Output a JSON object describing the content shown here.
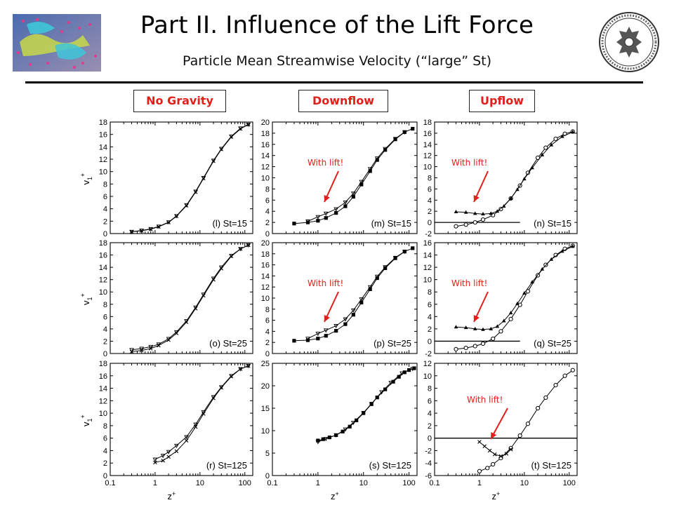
{
  "header": {
    "title": "Part II. Influence of the Lift Force",
    "subtitle": "Particle Mean Streamwise Velocity (“large” St)"
  },
  "column_labels": [
    "No Gravity",
    "Downflow",
    "Upflow"
  ],
  "colors": {
    "accent": "#e0201b",
    "text": "#000000",
    "rule": "#000000"
  },
  "icons": {
    "thumbnail": "particle-flow-visualization",
    "seal": "university-seal"
  },
  "annotation_text": "With lift!",
  "axis": {
    "ylabel_base": "v",
    "ylabel_sub": "1",
    "ylabel_sup": "+",
    "xlabel": "z",
    "xlabel_sup": "+",
    "xticks": [
      "0.1",
      "1",
      "10",
      "100"
    ]
  },
  "chart_data": [
    {
      "type": "line",
      "label": "(l) St=15",
      "x_scale": "log",
      "xlim": [
        0.1,
        150
      ],
      "ylim": [
        0,
        18
      ],
      "yticks": [
        0,
        2,
        4,
        6,
        8,
        10,
        12,
        14,
        16,
        18
      ],
      "zero_line": false,
      "annotated": false,
      "series": [
        {
          "marker": "x",
          "x": [
            0.3,
            0.5,
            0.8,
            1.2,
            2,
            3,
            5,
            8,
            12,
            20,
            30,
            50,
            80,
            120
          ],
          "y": [
            0.3,
            0.45,
            0.7,
            1.1,
            1.8,
            2.8,
            4.5,
            6.7,
            8.9,
            11.7,
            13.6,
            15.6,
            16.9,
            17.6
          ]
        },
        {
          "marker": "v",
          "x": [
            0.3,
            0.5,
            0.8,
            1.2,
            2,
            3,
            5,
            8,
            12,
            20,
            30,
            50,
            80,
            120
          ],
          "y": [
            0.3,
            0.5,
            0.75,
            1.15,
            1.85,
            2.85,
            4.6,
            6.8,
            9.0,
            11.8,
            13.7,
            15.7,
            17.0,
            17.6
          ]
        }
      ]
    },
    {
      "type": "line",
      "label": "(m) St=15",
      "x_scale": "log",
      "xlim": [
        0.1,
        150
      ],
      "ylim": [
        0,
        20
      ],
      "yticks": [
        0,
        2,
        4,
        6,
        8,
        10,
        12,
        14,
        16,
        18,
        20
      ],
      "zero_line": false,
      "annotated": true,
      "series": [
        {
          "marker": "square",
          "x": [
            0.3,
            0.6,
            1,
            1.5,
            2.5,
            4,
            6,
            9,
            14,
            20,
            30,
            50,
            80,
            120
          ],
          "y": [
            1.8,
            2.0,
            2.3,
            2.8,
            3.7,
            4.9,
            6.6,
            8.8,
            11.2,
            13.2,
            15.0,
            16.9,
            18.2,
            18.8
          ]
        },
        {
          "marker": "v",
          "x": [
            0.6,
            1,
            1.5,
            2.5,
            4,
            6,
            9,
            14,
            20,
            30,
            50,
            80
          ],
          "y": [
            2.2,
            3.0,
            3.6,
            4.4,
            5.6,
            7.2,
            9.3,
            11.6,
            13.5,
            15.2,
            17.0,
            18.2
          ]
        }
      ]
    },
    {
      "type": "line",
      "label": "(n) St=15",
      "x_scale": "log",
      "xlim": [
        0.1,
        150
      ],
      "ylim": [
        -2,
        18
      ],
      "yticks": [
        -2,
        0,
        2,
        4,
        6,
        8,
        10,
        12,
        14,
        16,
        18
      ],
      "zero_line": true,
      "annotated": true,
      "series": [
        {
          "marker": "circle",
          "x": [
            0.3,
            0.5,
            0.8,
            1.2,
            2,
            3,
            5,
            8,
            12,
            20,
            30,
            50,
            80,
            120
          ],
          "y": [
            -0.7,
            -0.4,
            0.0,
            0.5,
            1.3,
            2.4,
            4.3,
            6.6,
            8.9,
            11.6,
            13.4,
            15.0,
            15.9,
            16.3
          ]
        },
        {
          "marker": "triangle",
          "x": [
            0.3,
            0.5,
            0.8,
            1.2,
            1.8,
            2.5,
            3.5,
            5,
            7,
            10,
            15,
            25,
            40,
            70,
            120
          ],
          "y": [
            1.9,
            1.8,
            1.6,
            1.5,
            1.6,
            2.0,
            2.9,
            4.3,
            5.9,
            7.8,
            9.8,
            12.1,
            13.9,
            15.4,
            16.2
          ]
        }
      ]
    },
    {
      "type": "line",
      "label": "(o) St=25",
      "x_scale": "log",
      "xlim": [
        0.1,
        150
      ],
      "ylim": [
        0,
        18
      ],
      "yticks": [
        0,
        2,
        4,
        6,
        8,
        10,
        12,
        14,
        16,
        18
      ],
      "zero_line": false,
      "annotated": false,
      "series": [
        {
          "marker": "x",
          "x": [
            0.3,
            0.5,
            0.8,
            1.2,
            2,
            3,
            5,
            8,
            12,
            20,
            30,
            50,
            80,
            120
          ],
          "y": [
            0.3,
            0.5,
            0.8,
            1.3,
            2.2,
            3.3,
            5.1,
            7.3,
            9.4,
            12.0,
            13.8,
            15.8,
            17.0,
            17.6
          ]
        },
        {
          "marker": "v",
          "x": [
            0.3,
            0.5,
            0.8,
            1.2,
            2,
            3,
            5,
            8,
            12,
            20,
            30,
            50,
            80,
            120
          ],
          "y": [
            0.6,
            0.8,
            1.1,
            1.5,
            2.4,
            3.5,
            5.3,
            7.5,
            9.6,
            12.2,
            14.0,
            15.9,
            17.0,
            17.6
          ]
        }
      ]
    },
    {
      "type": "line",
      "label": "(p) St=25",
      "x_scale": "log",
      "xlim": [
        0.1,
        150
      ],
      "ylim": [
        0,
        20
      ],
      "yticks": [
        0,
        2,
        4,
        6,
        8,
        10,
        12,
        14,
        16,
        18,
        20
      ],
      "zero_line": false,
      "annotated": true,
      "series": [
        {
          "marker": "square",
          "x": [
            0.3,
            0.6,
            1,
            1.5,
            2.5,
            4,
            6,
            9,
            14,
            20,
            30,
            50,
            80,
            120
          ],
          "y": [
            2.3,
            2.4,
            2.7,
            3.2,
            4.1,
            5.3,
            7.0,
            9.2,
            11.6,
            13.6,
            15.4,
            17.2,
            18.4,
            19.0
          ]
        },
        {
          "marker": "v",
          "x": [
            0.6,
            1,
            1.5,
            2.5,
            4,
            6,
            9,
            14,
            20,
            30,
            50,
            80
          ],
          "y": [
            2.7,
            3.6,
            4.2,
            5.0,
            6.2,
            7.8,
            9.8,
            12.0,
            13.9,
            15.6,
            17.3,
            18.4
          ]
        }
      ]
    },
    {
      "type": "line",
      "label": "(q) St=25",
      "x_scale": "log",
      "xlim": [
        0.1,
        150
      ],
      "ylim": [
        -2,
        16
      ],
      "yticks": [
        -2,
        0,
        2,
        4,
        6,
        8,
        10,
        12,
        14,
        16
      ],
      "zero_line": true,
      "annotated": true,
      "series": [
        {
          "marker": "circle",
          "x": [
            0.3,
            0.5,
            0.8,
            1.2,
            2,
            3,
            5,
            8,
            12,
            20,
            30,
            50,
            80,
            120
          ],
          "y": [
            -1.3,
            -1.1,
            -0.8,
            -0.4,
            0.4,
            1.6,
            3.6,
            5.9,
            8.1,
            10.7,
            12.4,
            14.0,
            15.0,
            15.5
          ]
        },
        {
          "marker": "triangle",
          "x": [
            0.3,
            0.5,
            0.8,
            1.2,
            1.8,
            2.5,
            3.5,
            5,
            7,
            10,
            15,
            25,
            40,
            70,
            120
          ],
          "y": [
            2.3,
            2.2,
            2.0,
            1.9,
            2.0,
            2.4,
            3.3,
            4.6,
            6.1,
            7.8,
            9.6,
            11.7,
            13.3,
            14.6,
            15.4
          ]
        }
      ]
    },
    {
      "type": "line",
      "label": "(r) St=125",
      "x_scale": "log",
      "xlim": [
        0.1,
        150
      ],
      "ylim": [
        0,
        18
      ],
      "yticks": [
        0,
        2,
        4,
        6,
        8,
        10,
        12,
        14,
        16,
        18
      ],
      "zero_line": false,
      "annotated": false,
      "series": [
        {
          "marker": "x",
          "x": [
            1,
            1.5,
            2,
            3,
            5,
            8,
            12,
            20,
            30,
            50,
            80,
            120
          ],
          "y": [
            2.1,
            2.4,
            3.0,
            3.9,
            5.6,
            7.8,
            9.9,
            12.4,
            14.1,
            15.9,
            17.1,
            17.6
          ]
        },
        {
          "marker": "v",
          "x": [
            1,
            1.5,
            2,
            3,
            5,
            8,
            12,
            20,
            30,
            50,
            80,
            120
          ],
          "y": [
            2.6,
            3.2,
            3.8,
            4.8,
            6.2,
            8.2,
            10.2,
            12.6,
            14.2,
            16.0,
            17.1,
            17.6
          ]
        }
      ]
    },
    {
      "type": "line",
      "label": "(s) St=125",
      "x_scale": "log",
      "xlim": [
        0.1,
        150
      ],
      "ylim": [
        0,
        25
      ],
      "yticks": [
        0,
        5,
        10,
        15,
        20,
        25
      ],
      "zero_line": false,
      "annotated": false,
      "series": [
        {
          "marker": "square",
          "x": [
            1,
            1.3,
            1.8,
            2.5,
            3.5,
            5,
            7,
            10,
            15,
            20,
            30,
            45,
            60,
            80,
            100,
            130
          ],
          "y": [
            7.8,
            8.1,
            8.5,
            9.0,
            9.8,
            10.9,
            12.3,
            13.9,
            15.9,
            17.4,
            19.2,
            20.9,
            22.0,
            23.0,
            23.5,
            23.9
          ]
        },
        {
          "marker": "v",
          "x": [
            1,
            1.5,
            2.5,
            4,
            6,
            10,
            15,
            25,
            40,
            70,
            120
          ],
          "y": [
            7.5,
            8.2,
            9.0,
            10.3,
            11.8,
            14.0,
            16.0,
            18.6,
            20.7,
            22.8,
            23.8
          ]
        }
      ]
    },
    {
      "type": "line",
      "label": "(t) St=125",
      "x_scale": "log",
      "xlim": [
        0.1,
        150
      ],
      "ylim": [
        -6,
        12
      ],
      "yticks": [
        -6,
        -4,
        -2,
        0,
        2,
        4,
        6,
        8,
        10,
        12
      ],
      "zero_line": true,
      "annotated": true,
      "series": [
        {
          "marker": "circle",
          "x": [
            1,
            1.5,
            2,
            3,
            5,
            8,
            12,
            20,
            30,
            50,
            80,
            120
          ],
          "y": [
            -5.3,
            -4.8,
            -4.2,
            -3.2,
            -1.6,
            0.4,
            2.3,
            4.8,
            6.5,
            8.5,
            10.0,
            10.9
          ]
        },
        {
          "marker": "x",
          "x": [
            1,
            1.3,
            1.7,
            2.2,
            3,
            4,
            5
          ],
          "y": [
            -0.6,
            -1.3,
            -2.0,
            -2.6,
            -2.9,
            -2.5,
            -1.8
          ]
        }
      ]
    }
  ]
}
